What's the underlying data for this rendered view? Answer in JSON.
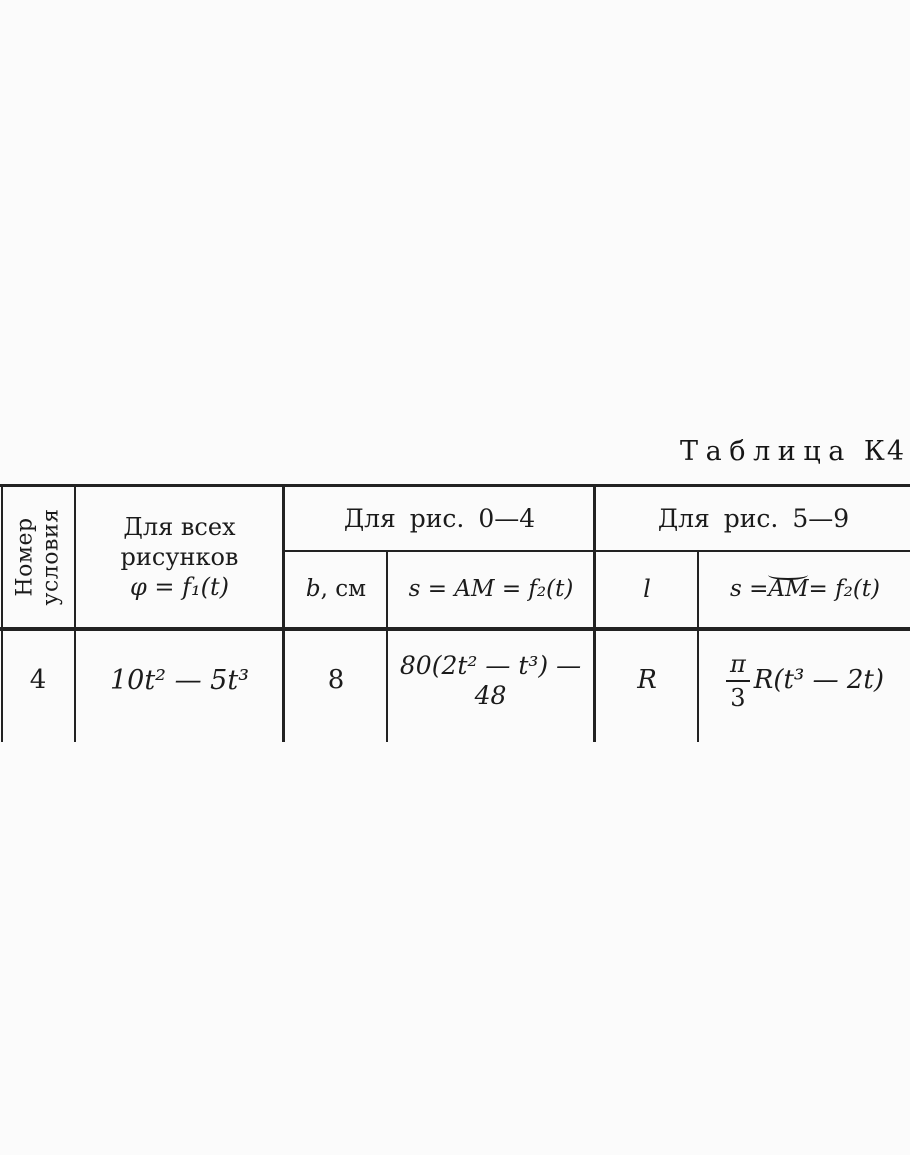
{
  "caption": {
    "word": "Таблица",
    "code": "К4"
  },
  "table": {
    "col1_header": {
      "line1": "Номер",
      "line2": "условия"
    },
    "col2_header": {
      "line1": "Для всех",
      "line2": "рисунков",
      "formula": "φ = f₁(t)"
    },
    "group1": {
      "label": "Для рис. 0—4"
    },
    "group2": {
      "label": "Для рис. 5—9"
    },
    "sub_b": {
      "var": "b",
      "unit": ", см"
    },
    "sub_s1": {
      "formula": "s = AM = f₂(t)"
    },
    "sub_l": {
      "var": "l"
    },
    "sub_s2": {
      "before": "s = ",
      "arc": "AM",
      "after": " = f₂(t)"
    },
    "row": {
      "number": "4",
      "phi": "10t² — 5t³",
      "b": "8",
      "s1": "80(2t² — t³) — 48",
      "l": "R",
      "s2": {
        "frac_num": "π",
        "frac_den": "3",
        "rest": "R(t³ — 2t)"
      }
    }
  },
  "colors": {
    "ink": "#1b1b1b",
    "rule": "#222222",
    "paper": "#fbfbfb"
  }
}
